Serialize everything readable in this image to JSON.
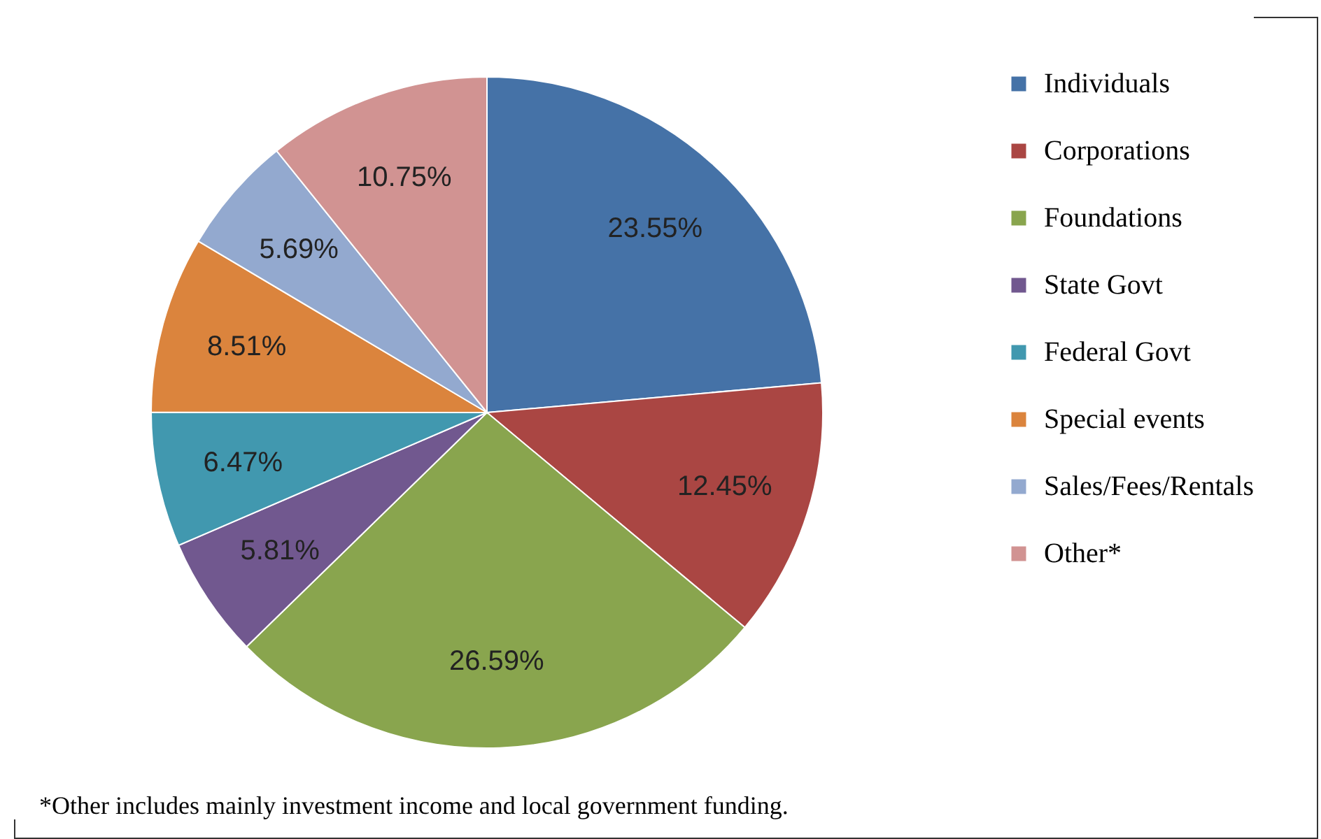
{
  "chart_data": {
    "type": "pie",
    "categories": [
      "Individuals",
      "Corporations",
      "Foundations",
      "State Govt",
      "Federal Govt",
      "Special events",
      "Sales/Fees/Rentals",
      "Other*"
    ],
    "values": [
      23.55,
      12.45,
      26.59,
      5.81,
      6.47,
      8.51,
      5.69,
      10.75
    ],
    "value_labels": [
      "23.55%",
      "12.45%",
      "26.59%",
      "5.81%",
      "6.47%",
      "8.51%",
      "5.69%",
      "10.75%"
    ],
    "colors": [
      "#4572a7",
      "#aa4643",
      "#89a54e",
      "#71588f",
      "#4198af",
      "#db843d",
      "#93a9cf",
      "#d19392"
    ],
    "legend": "right",
    "annotations": [
      "*Other includes mainly  investment  income and local government  funding."
    ]
  }
}
